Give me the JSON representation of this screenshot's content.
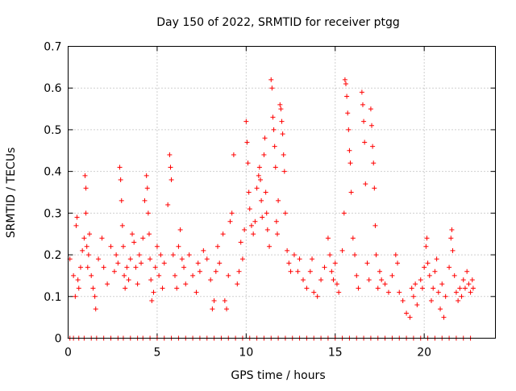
{
  "chart_data": {
    "type": "scatter",
    "title": "Day 150 of 2022, SRMTID for receiver ptgg",
    "xlabel": "GPS time / hours",
    "ylabel": "SRMTID / TECUs",
    "xlim": [
      0,
      24
    ],
    "ylim": [
      0,
      0.7
    ],
    "xticks": [
      0,
      5,
      10,
      15,
      20
    ],
    "xtick_labels": [
      "0",
      "5",
      "10",
      "15",
      "20"
    ],
    "yticks": [
      0,
      0.1,
      0.2,
      0.3,
      0.4,
      0.5,
      0.6,
      0.7
    ],
    "ytick_labels": [
      "0",
      "0.1",
      "0.2",
      "0.3",
      "0.4",
      "0.5",
      "0.6",
      "0.7"
    ],
    "grid": true,
    "marker": "+",
    "color": "#ff0000",
    "series": [
      {
        "name": "SRMTID",
        "points": [
          [
            0.1,
            0.0
          ],
          [
            0.3,
            0.0
          ],
          [
            0.6,
            0.0
          ],
          [
            0.9,
            0.0
          ],
          [
            1.3,
            0.0
          ],
          [
            1.6,
            0.0
          ],
          [
            2.0,
            0.0
          ],
          [
            2.4,
            0.0
          ],
          [
            2.8,
            0.0
          ],
          [
            3.1,
            0.0
          ],
          [
            3.5,
            0.0
          ],
          [
            3.9,
            0.0
          ],
          [
            4.2,
            0.0
          ],
          [
            4.6,
            0.0
          ],
          [
            5.0,
            0.0
          ],
          [
            5.4,
            0.0
          ],
          [
            5.8,
            0.0
          ],
          [
            6.2,
            0.0
          ],
          [
            6.6,
            0.0
          ],
          [
            7.0,
            0.0
          ],
          [
            7.4,
            0.0
          ],
          [
            7.8,
            0.0
          ],
          [
            8.2,
            0.0
          ],
          [
            8.6,
            0.0
          ],
          [
            9.0,
            0.0
          ],
          [
            9.4,
            0.0
          ],
          [
            9.8,
            0.0
          ],
          [
            10.2,
            0.0
          ],
          [
            10.6,
            0.0
          ],
          [
            11.0,
            0.0
          ],
          [
            11.4,
            0.0
          ],
          [
            11.8,
            0.0
          ],
          [
            12.2,
            0.0
          ],
          [
            12.6,
            0.0
          ],
          [
            13.0,
            0.0
          ],
          [
            13.4,
            0.0
          ],
          [
            13.8,
            0.0
          ],
          [
            14.2,
            0.0
          ],
          [
            14.6,
            0.0
          ],
          [
            15.0,
            0.0
          ],
          [
            15.4,
            0.0
          ],
          [
            15.8,
            0.0
          ],
          [
            16.2,
            0.0
          ],
          [
            16.6,
            0.0
          ],
          [
            17.0,
            0.0
          ],
          [
            17.4,
            0.0
          ],
          [
            17.8,
            0.0
          ],
          [
            18.2,
            0.0
          ],
          [
            18.6,
            0.0
          ],
          [
            19.0,
            0.0
          ],
          [
            19.4,
            0.0
          ],
          [
            19.8,
            0.0
          ],
          [
            20.2,
            0.0
          ],
          [
            20.6,
            0.0
          ],
          [
            21.0,
            0.0
          ],
          [
            21.4,
            0.0
          ],
          [
            21.8,
            0.0
          ],
          [
            22.2,
            0.0
          ],
          [
            22.6,
            0.0
          ],
          [
            0.1,
            0.19
          ],
          [
            0.3,
            0.15
          ],
          [
            0.4,
            0.1
          ],
          [
            0.45,
            0.27
          ],
          [
            0.5,
            0.29
          ],
          [
            0.55,
            0.14
          ],
          [
            0.6,
            0.12
          ],
          [
            0.7,
            0.17
          ],
          [
            0.8,
            0.21
          ],
          [
            0.9,
            0.24
          ],
          [
            0.95,
            0.39
          ],
          [
            1.0,
            0.36
          ],
          [
            1.0,
            0.3
          ],
          [
            1.05,
            0.22
          ],
          [
            1.1,
            0.17
          ],
          [
            1.15,
            0.2
          ],
          [
            1.2,
            0.25
          ],
          [
            1.3,
            0.15
          ],
          [
            1.4,
            0.12
          ],
          [
            1.5,
            0.1
          ],
          [
            1.55,
            0.07
          ],
          [
            1.7,
            0.19
          ],
          [
            1.9,
            0.24
          ],
          [
            2.0,
            0.17
          ],
          [
            2.2,
            0.13
          ],
          [
            2.4,
            0.22
          ],
          [
            2.6,
            0.16
          ],
          [
            2.7,
            0.2
          ],
          [
            2.8,
            0.18
          ],
          [
            2.9,
            0.41
          ],
          [
            2.95,
            0.38
          ],
          [
            3.0,
            0.33
          ],
          [
            3.05,
            0.27
          ],
          [
            3.1,
            0.22
          ],
          [
            3.15,
            0.15
          ],
          [
            3.2,
            0.12
          ],
          [
            3.3,
            0.17
          ],
          [
            3.4,
            0.14
          ],
          [
            3.5,
            0.19
          ],
          [
            3.6,
            0.25
          ],
          [
            3.7,
            0.23
          ],
          [
            3.8,
            0.17
          ],
          [
            3.9,
            0.13
          ],
          [
            4.0,
            0.2
          ],
          [
            4.1,
            0.18
          ],
          [
            4.2,
            0.24
          ],
          [
            4.3,
            0.33
          ],
          [
            4.4,
            0.39
          ],
          [
            4.45,
            0.36
          ],
          [
            4.5,
            0.3
          ],
          [
            4.55,
            0.25
          ],
          [
            4.6,
            0.19
          ],
          [
            4.65,
            0.14
          ],
          [
            4.7,
            0.09
          ],
          [
            4.8,
            0.11
          ],
          [
            4.9,
            0.17
          ],
          [
            5.0,
            0.22
          ],
          [
            5.1,
            0.15
          ],
          [
            5.2,
            0.2
          ],
          [
            5.3,
            0.12
          ],
          [
            5.4,
            0.18
          ],
          [
            5.6,
            0.32
          ],
          [
            5.7,
            0.44
          ],
          [
            5.75,
            0.41
          ],
          [
            5.8,
            0.38
          ],
          [
            5.9,
            0.2
          ],
          [
            6.0,
            0.15
          ],
          [
            6.1,
            0.12
          ],
          [
            6.2,
            0.22
          ],
          [
            6.3,
            0.26
          ],
          [
            6.4,
            0.19
          ],
          [
            6.5,
            0.17
          ],
          [
            6.6,
            0.13
          ],
          [
            6.8,
            0.2
          ],
          [
            7.0,
            0.15
          ],
          [
            7.2,
            0.11
          ],
          [
            7.3,
            0.18
          ],
          [
            7.4,
            0.16
          ],
          [
            7.6,
            0.21
          ],
          [
            7.8,
            0.19
          ],
          [
            8.0,
            0.14
          ],
          [
            8.1,
            0.07
          ],
          [
            8.2,
            0.09
          ],
          [
            8.3,
            0.16
          ],
          [
            8.4,
            0.22
          ],
          [
            8.5,
            0.18
          ],
          [
            8.7,
            0.25
          ],
          [
            8.8,
            0.09
          ],
          [
            8.9,
            0.07
          ],
          [
            9.0,
            0.15
          ],
          [
            9.1,
            0.28
          ],
          [
            9.2,
            0.3
          ],
          [
            9.3,
            0.44
          ],
          [
            9.5,
            0.13
          ],
          [
            9.6,
            0.16
          ],
          [
            9.7,
            0.23
          ],
          [
            9.8,
            0.19
          ],
          [
            9.9,
            0.26
          ],
          [
            10.0,
            0.52
          ],
          [
            10.05,
            0.47
          ],
          [
            10.1,
            0.42
          ],
          [
            10.15,
            0.35
          ],
          [
            10.2,
            0.31
          ],
          [
            10.3,
            0.27
          ],
          [
            10.4,
            0.25
          ],
          [
            10.5,
            0.28
          ],
          [
            10.6,
            0.36
          ],
          [
            10.7,
            0.39
          ],
          [
            10.75,
            0.41
          ],
          [
            10.8,
            0.38
          ],
          [
            10.85,
            0.33
          ],
          [
            10.9,
            0.29
          ],
          [
            11.0,
            0.44
          ],
          [
            11.05,
            0.48
          ],
          [
            11.1,
            0.35
          ],
          [
            11.15,
            0.3
          ],
          [
            11.2,
            0.26
          ],
          [
            11.3,
            0.22
          ],
          [
            11.4,
            0.62
          ],
          [
            11.45,
            0.6
          ],
          [
            11.5,
            0.53
          ],
          [
            11.55,
            0.5
          ],
          [
            11.6,
            0.46
          ],
          [
            11.65,
            0.41
          ],
          [
            11.7,
            0.28
          ],
          [
            11.75,
            0.25
          ],
          [
            11.8,
            0.33
          ],
          [
            11.9,
            0.56
          ],
          [
            11.95,
            0.55
          ],
          [
            12.0,
            0.52
          ],
          [
            12.05,
            0.49
          ],
          [
            12.1,
            0.44
          ],
          [
            12.15,
            0.4
          ],
          [
            12.2,
            0.3
          ],
          [
            12.3,
            0.21
          ],
          [
            12.4,
            0.18
          ],
          [
            12.5,
            0.16
          ],
          [
            12.7,
            0.2
          ],
          [
            12.9,
            0.16
          ],
          [
            13.0,
            0.19
          ],
          [
            13.2,
            0.14
          ],
          [
            13.4,
            0.12
          ],
          [
            13.6,
            0.16
          ],
          [
            13.7,
            0.19
          ],
          [
            13.8,
            0.11
          ],
          [
            14.0,
            0.1
          ],
          [
            14.2,
            0.14
          ],
          [
            14.4,
            0.17
          ],
          [
            14.6,
            0.24
          ],
          [
            14.7,
            0.2
          ],
          [
            14.8,
            0.16
          ],
          [
            14.9,
            0.14
          ],
          [
            15.0,
            0.18
          ],
          [
            15.1,
            0.13
          ],
          [
            15.2,
            0.11
          ],
          [
            15.4,
            0.21
          ],
          [
            15.5,
            0.3
          ],
          [
            15.55,
            0.62
          ],
          [
            15.6,
            0.61
          ],
          [
            15.65,
            0.58
          ],
          [
            15.7,
            0.54
          ],
          [
            15.75,
            0.5
          ],
          [
            15.8,
            0.45
          ],
          [
            15.85,
            0.42
          ],
          [
            15.9,
            0.35
          ],
          [
            16.0,
            0.24
          ],
          [
            16.1,
            0.2
          ],
          [
            16.2,
            0.15
          ],
          [
            16.3,
            0.12
          ],
          [
            16.5,
            0.59
          ],
          [
            16.55,
            0.56
          ],
          [
            16.6,
            0.52
          ],
          [
            16.65,
            0.47
          ],
          [
            16.7,
            0.37
          ],
          [
            16.8,
            0.18
          ],
          [
            16.9,
            0.14
          ],
          [
            17.0,
            0.55
          ],
          [
            17.05,
            0.51
          ],
          [
            17.1,
            0.46
          ],
          [
            17.15,
            0.42
          ],
          [
            17.2,
            0.36
          ],
          [
            17.25,
            0.27
          ],
          [
            17.3,
            0.2
          ],
          [
            17.4,
            0.12
          ],
          [
            17.5,
            0.16
          ],
          [
            17.6,
            0.14
          ],
          [
            17.8,
            0.13
          ],
          [
            18.0,
            0.11
          ],
          [
            18.2,
            0.15
          ],
          [
            18.4,
            0.2
          ],
          [
            18.5,
            0.18
          ],
          [
            18.6,
            0.11
          ],
          [
            18.8,
            0.09
          ],
          [
            19.0,
            0.06
          ],
          [
            19.2,
            0.05
          ],
          [
            19.3,
            0.12
          ],
          [
            19.4,
            0.1
          ],
          [
            19.5,
            0.13
          ],
          [
            19.6,
            0.08
          ],
          [
            19.8,
            0.14
          ],
          [
            19.9,
            0.12
          ],
          [
            20.0,
            0.17
          ],
          [
            20.1,
            0.22
          ],
          [
            20.15,
            0.24
          ],
          [
            20.2,
            0.18
          ],
          [
            20.3,
            0.15
          ],
          [
            20.4,
            0.09
          ],
          [
            20.5,
            0.12
          ],
          [
            20.6,
            0.16
          ],
          [
            20.7,
            0.19
          ],
          [
            20.8,
            0.11
          ],
          [
            20.9,
            0.07
          ],
          [
            21.0,
            0.13
          ],
          [
            21.1,
            0.05
          ],
          [
            21.2,
            0.1
          ],
          [
            21.4,
            0.17
          ],
          [
            21.5,
            0.24
          ],
          [
            21.55,
            0.26
          ],
          [
            21.6,
            0.21
          ],
          [
            21.7,
            0.15
          ],
          [
            21.8,
            0.11
          ],
          [
            21.9,
            0.09
          ],
          [
            22.0,
            0.12
          ],
          [
            22.1,
            0.1
          ],
          [
            22.2,
            0.14
          ],
          [
            22.3,
            0.12
          ],
          [
            22.4,
            0.16
          ],
          [
            22.5,
            0.13
          ],
          [
            22.6,
            0.11
          ],
          [
            22.7,
            0.14
          ],
          [
            22.75,
            0.12
          ]
        ]
      }
    ]
  }
}
